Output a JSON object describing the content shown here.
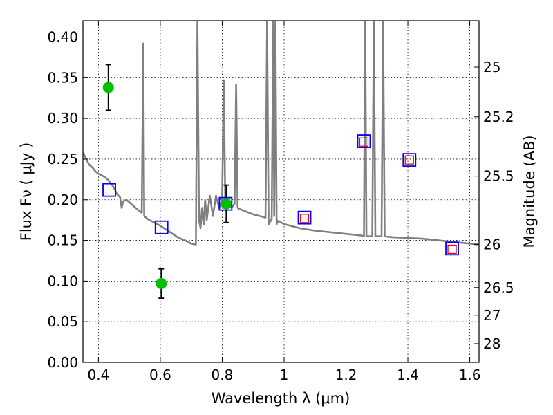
{
  "chart_data": {
    "type": "scatter",
    "xlabel": "Wavelength  λ (μm)",
    "ylabel_left": "Flux  Fν  ( μJy )",
    "ylabel_right": "Magnitude (AB)",
    "xlim": [
      0.35,
      1.63
    ],
    "ylim": [
      0.0,
      0.42
    ],
    "x_ticks": [
      {
        "value": 0.4,
        "label": "0.4"
      },
      {
        "value": 0.6,
        "label": "0.6"
      },
      {
        "value": 0.8,
        "label": "0.8"
      },
      {
        "value": 1.0,
        "label": "1"
      },
      {
        "value": 1.2,
        "label": "1.2"
      },
      {
        "value": 1.4,
        "label": "1.4"
      },
      {
        "value": 1.6,
        "label": "1.6"
      }
    ],
    "y_ticks": [
      {
        "value": 0.0,
        "label": "0.00"
      },
      {
        "value": 0.05,
        "label": "0.05"
      },
      {
        "value": 0.1,
        "label": "0.10"
      },
      {
        "value": 0.15,
        "label": "0.15"
      },
      {
        "value": 0.2,
        "label": "0.20"
      },
      {
        "value": 0.25,
        "label": "0.25"
      },
      {
        "value": 0.3,
        "label": "0.30"
      },
      {
        "value": 0.35,
        "label": "0.35"
      },
      {
        "value": 0.4,
        "label": "0.40"
      }
    ],
    "right_ticks": [
      {
        "flux": 0.363,
        "label": "25"
      },
      {
        "flux": 0.302,
        "label": "25.2"
      },
      {
        "flux": 0.229,
        "label": "25.5"
      },
      {
        "flux": 0.145,
        "label": "26"
      },
      {
        "flux": 0.092,
        "label": "26.5"
      },
      {
        "flux": 0.058,
        "label": "27"
      },
      {
        "flux": 0.023,
        "label": "28"
      }
    ],
    "grid": true,
    "series": [
      {
        "kind": "line",
        "color": "#808080",
        "points": [
          [
            0.35,
            0.258
          ],
          [
            0.37,
            0.243
          ],
          [
            0.38,
            0.24
          ],
          [
            0.39,
            0.235
          ],
          [
            0.4,
            0.232
          ],
          [
            0.41,
            0.23
          ],
          [
            0.42,
            0.228
          ],
          [
            0.43,
            0.225
          ],
          [
            0.44,
            0.22
          ],
          [
            0.45,
            0.215
          ],
          [
            0.46,
            0.207
          ],
          [
            0.47,
            0.203
          ],
          [
            0.475,
            0.19
          ],
          [
            0.48,
            0.198
          ],
          [
            0.49,
            0.2
          ],
          [
            0.5,
            0.197
          ],
          [
            0.52,
            0.19
          ],
          [
            0.54,
            0.184
          ],
          [
            0.545,
            0.392
          ],
          [
            0.548,
            0.18
          ],
          [
            0.56,
            0.176
          ],
          [
            0.58,
            0.172
          ],
          [
            0.6,
            0.168
          ],
          [
            0.62,
            0.163
          ],
          [
            0.64,
            0.158
          ],
          [
            0.66,
            0.153
          ],
          [
            0.68,
            0.15
          ],
          [
            0.7,
            0.146
          ],
          [
            0.715,
            0.145
          ],
          [
            0.72,
            0.42
          ],
          [
            0.725,
            0.175
          ],
          [
            0.73,
            0.165
          ],
          [
            0.735,
            0.19
          ],
          [
            0.74,
            0.17
          ],
          [
            0.745,
            0.2
          ],
          [
            0.75,
            0.175
          ],
          [
            0.76,
            0.205
          ],
          [
            0.77,
            0.18
          ],
          [
            0.78,
            0.205
          ],
          [
            0.79,
            0.19
          ],
          [
            0.8,
            0.2
          ],
          [
            0.805,
            0.347
          ],
          [
            0.81,
            0.195
          ],
          [
            0.82,
            0.2
          ],
          [
            0.83,
            0.19
          ],
          [
            0.84,
            0.195
          ],
          [
            0.845,
            0.341
          ],
          [
            0.85,
            0.19
          ],
          [
            0.86,
            0.188
          ],
          [
            0.88,
            0.185
          ],
          [
            0.9,
            0.182
          ],
          [
            0.92,
            0.18
          ],
          [
            0.94,
            0.178
          ],
          [
            0.945,
            0.42
          ],
          [
            0.95,
            0.17
          ],
          [
            0.96,
            0.176
          ],
          [
            0.965,
            0.42
          ],
          [
            0.968,
            0.18
          ],
          [
            0.972,
            0.42
          ],
          [
            0.976,
            0.17
          ],
          [
            0.98,
            0.174
          ],
          [
            1.0,
            0.17
          ],
          [
            1.05,
            0.165
          ],
          [
            1.1,
            0.162
          ],
          [
            1.15,
            0.16
          ],
          [
            1.2,
            0.158
          ],
          [
            1.25,
            0.156
          ],
          [
            1.258,
            0.155
          ],
          [
            1.262,
            0.42
          ],
          [
            1.266,
            0.155
          ],
          [
            1.28,
            0.155
          ],
          [
            1.285,
            0.155
          ],
          [
            1.29,
            0.42
          ],
          [
            1.295,
            0.155
          ],
          [
            1.3,
            0.155
          ],
          [
            1.315,
            0.155
          ],
          [
            1.32,
            0.42
          ],
          [
            1.325,
            0.155
          ],
          [
            1.35,
            0.154
          ],
          [
            1.4,
            0.153
          ],
          [
            1.45,
            0.152
          ],
          [
            1.5,
            0.15
          ],
          [
            1.55,
            0.148
          ],
          [
            1.6,
            0.146
          ],
          [
            1.63,
            0.145
          ]
        ]
      },
      {
        "kind": "points",
        "marker": "circle",
        "color": "#00c000",
        "points": [
          {
            "x": 0.432,
            "y": 0.338,
            "err": 0.028
          },
          {
            "x": 0.603,
            "y": 0.097,
            "err": 0.018
          },
          {
            "x": 0.813,
            "y": 0.195,
            "err": 0.023
          }
        ]
      },
      {
        "kind": "points",
        "marker": "square",
        "edge_color": "#0000ff",
        "points": [
          {
            "x": 0.435,
            "y": 0.212
          },
          {
            "x": 0.604,
            "y": 0.166
          },
          {
            "x": 0.811,
            "y": 0.195
          },
          {
            "x": 1.066,
            "y": 0.178
          },
          {
            "x": 1.258,
            "y": 0.272
          },
          {
            "x": 1.405,
            "y": 0.249
          },
          {
            "x": 1.543,
            "y": 0.14
          }
        ]
      },
      {
        "kind": "points",
        "marker": "square",
        "edge_color": "#ff0000",
        "points": [
          {
            "x": 1.066,
            "y": 0.177
          },
          {
            "x": 1.258,
            "y": 0.271
          },
          {
            "x": 1.405,
            "y": 0.249
          },
          {
            "x": 1.543,
            "y": 0.139
          }
        ]
      }
    ]
  }
}
